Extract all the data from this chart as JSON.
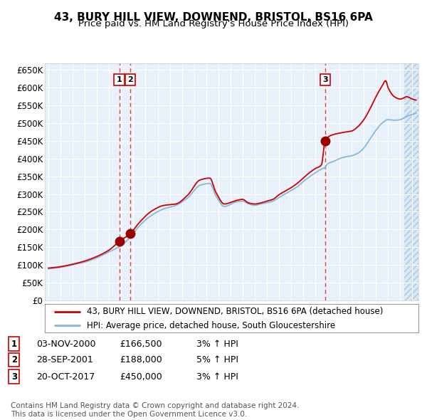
{
  "title": "43, BURY HILL VIEW, DOWNEND, BRISTOL, BS16 6PA",
  "subtitle": "Price paid vs. HM Land Registry's House Price Index (HPI)",
  "ylim": [
    0,
    670000
  ],
  "yticks": [
    0,
    50000,
    100000,
    150000,
    200000,
    250000,
    300000,
    350000,
    400000,
    450000,
    500000,
    550000,
    600000,
    650000
  ],
  "xlim_start": 1994.7,
  "xlim_end": 2025.5,
  "background_color": "#ffffff",
  "plot_bg_color": "#e8f0fa",
  "future_bg_color": "#d8e8f5",
  "grid_color": "#ffffff",
  "red_line_color": "#cc0000",
  "blue_line_color": "#88b8d8",
  "dashed_color": "#dd4444",
  "sale_marker_color": "#990000",
  "title_fontsize": 11,
  "subtitle_fontsize": 9.5,
  "tick_fontsize": 8.5,
  "legend_fontsize": 8.5,
  "table_fontsize": 9,
  "sales": [
    {
      "num": 1,
      "date_decimal": 2000.84,
      "price": 166500
    },
    {
      "num": 2,
      "date_decimal": 2001.74,
      "price": 188000
    },
    {
      "num": 3,
      "date_decimal": 2017.8,
      "price": 450000
    }
  ],
  "sale_dates_str": [
    "03-NOV-2000",
    "28-SEP-2001",
    "20-OCT-2017"
  ],
  "sale_prices_str": [
    "£166,500",
    "£188,000",
    "£450,000"
  ],
  "sale_hpi_str": [
    "3% ↑ HPI",
    "5% ↑ HPI",
    "3% ↑ HPI"
  ],
  "legend_line1": "43, BURY HILL VIEW, DOWNEND, BRISTOL, BS16 6PA (detached house)",
  "legend_line2": "HPI: Average price, detached house, South Gloucestershire",
  "footer": "Contains HM Land Registry data © Crown copyright and database right 2024.\nThis data is licensed under the Open Government Licence v3.0.",
  "future_start": 2024.33,
  "xtick_start": 1995,
  "xtick_end": 2026
}
